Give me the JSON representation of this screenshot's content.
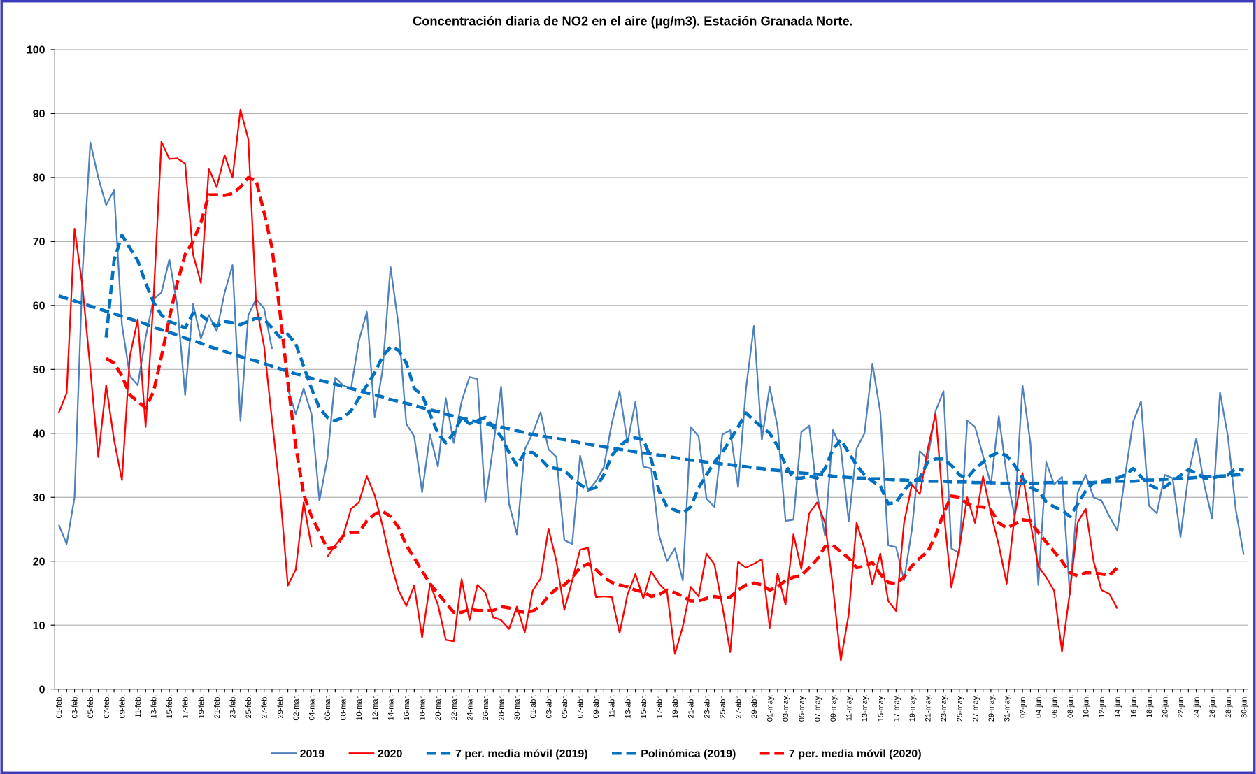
{
  "chart_data": {
    "type": "line",
    "title": "Concentración diaria de NO2 en el aire (µg/m3). Estación Granada Norte.",
    "categories": [
      "01-feb.",
      null,
      "03-feb.",
      null,
      "05-feb.",
      null,
      "07-feb.",
      null,
      "09-feb.",
      null,
      "11-feb.",
      null,
      "13-feb.",
      null,
      "15-feb.",
      null,
      "17-feb.",
      null,
      "19-feb.",
      null,
      "21-feb.",
      null,
      "23-feb.",
      null,
      "25-feb.",
      null,
      "27-feb.",
      null,
      "29-feb.",
      null,
      "02-mar.",
      null,
      "04-mar.",
      null,
      "06-mar.",
      null,
      "08-mar.",
      null,
      "10-mar.",
      null,
      "12-mar.",
      null,
      "14-mar.",
      null,
      "16-mar.",
      null,
      "18-mar.",
      null,
      "20-mar.",
      null,
      "22-mar.",
      null,
      "24-mar.",
      null,
      "26-mar.",
      null,
      "28-mar.",
      null,
      "30-mar.",
      null,
      "01-abr.",
      null,
      "03-abr.",
      null,
      "05-abr.",
      null,
      "07-abr.",
      null,
      "09-abr.",
      null,
      "11-abr.",
      null,
      "13-abr.",
      null,
      "15-abr.",
      null,
      "17-abr.",
      null,
      "19-abr.",
      null,
      "21-abr.",
      null,
      "23-abr.",
      null,
      "25-abr.",
      null,
      "27-abr.",
      null,
      "29-abr.",
      null,
      "01-may.",
      null,
      "03-may.",
      null,
      "05-may.",
      null,
      "07-may.",
      null,
      "09-may.",
      null,
      "11-may.",
      null,
      "13-may.",
      null,
      "15-may.",
      null,
      "17-may.",
      null,
      "19-may.",
      null,
      "21-may.",
      null,
      "23-may.",
      null,
      "25-may.",
      null,
      "27-may.",
      null,
      "29-may.",
      null,
      "31-may.",
      null,
      "02-jun.",
      null,
      "04-jun.",
      null,
      "06-jun.",
      null,
      "08-jun.",
      null,
      "10-jun.",
      null,
      "12-jun.",
      null,
      "14-jun.",
      null,
      "16-jun.",
      null,
      "18-jun.",
      null,
      "20-jun.",
      null,
      "22-jun.",
      null,
      "24-jun.",
      null,
      "26-jun.",
      null,
      "28-jun.",
      null,
      "30-jun."
    ],
    "series": [
      {
        "name": "2019",
        "color": "#4f81bd",
        "style": "solid",
        "values": [
          25.7,
          22.7,
          30,
          65,
          85.5,
          80,
          75.7,
          78,
          57,
          49,
          47.5,
          55,
          61,
          62,
          67.2,
          60,
          46,
          60.2,
          54.8,
          58.5,
          56,
          62,
          66.3,
          42,
          58.5,
          61,
          59.5,
          53.2,
          null,
          47,
          43,
          47,
          43,
          29.5,
          36,
          48.7,
          47.5,
          47,
          54.5,
          59,
          42.5,
          50,
          66,
          57,
          41.5,
          39.5,
          30.8,
          39.8,
          34.8,
          45.5,
          38.5,
          45,
          48.8,
          48.5,
          29.3,
          38,
          47.3,
          29,
          24.2,
          37.5,
          40,
          43.3,
          37.5,
          36.3,
          23.3,
          22.7,
          36.5,
          31,
          32.5,
          34.7,
          41.5,
          46.6,
          38.5,
          44.9,
          34.8,
          34.5,
          24,
          20,
          22,
          17,
          41,
          39.5,
          29.8,
          28.5,
          39.8,
          40.5,
          31.6,
          47,
          56.8,
          39,
          47.3,
          41,
          26.3,
          26.5,
          40.2,
          41.2,
          30.5,
          24,
          40.5,
          37.8,
          26.2,
          37.6,
          40,
          50.9,
          43.3,
          22.5,
          22.2,
          17,
          25,
          37.2,
          36,
          43.5,
          46.6,
          22,
          21.3,
          42,
          41,
          36.5,
          32,
          42.7,
          33.5,
          27,
          47.5,
          38.5,
          16.3,
          35.5,
          32,
          33.2,
          14.8,
          30.8,
          33.5,
          30,
          29.5,
          27,
          24.8,
          33.5,
          41.8,
          45,
          28.7,
          27.5,
          33.5,
          33,
          23.8,
          33.5,
          39.2,
          32,
          26.7,
          46.4,
          39.5,
          28,
          21
        ]
      },
      {
        "name": "2020",
        "color": "#ff0000",
        "style": "solid",
        "values": [
          43.2,
          46.3,
          72,
          63,
          50,
          36.3,
          47.5,
          39,
          32.7,
          52,
          57.8,
          41,
          61,
          85.6,
          82.9,
          83,
          82.2,
          68,
          63.5,
          81.4,
          78.5,
          83.5,
          80,
          90.6,
          86,
          60,
          53.6,
          42,
          31,
          16.2,
          18.7,
          29.2,
          22.2,
          null,
          20.7,
          22.5,
          24,
          28.2,
          29.2,
          33.3,
          30.3,
          25.5,
          20,
          15.5,
          13,
          16.2,
          8.1,
          16.5,
          13.2,
          7.7,
          7.5,
          17.2,
          10.8,
          16.3,
          15.1,
          11.2,
          10.8,
          9.4,
          12.9,
          8.9,
          15.4,
          17.3,
          25.1,
          20,
          12.4,
          17,
          21.8,
          22.1,
          14.4,
          14.5,
          14.4,
          8.8,
          14.8,
          18,
          14.2,
          18.4,
          16.5,
          15.2,
          5.5,
          9.8,
          16,
          14.5,
          21.2,
          19.5,
          13,
          5.8,
          19.9,
          19,
          19.6,
          20.3,
          9.6,
          18.1,
          13.2,
          24.2,
          18.8,
          27.5,
          29.2,
          26,
          16,
          4.5,
          11.7,
          26,
          22,
          16.4,
          21.2,
          13.8,
          12.2,
          26,
          32,
          30.5,
          37.5,
          43.1,
          28,
          15.9,
          22,
          30,
          26,
          33.3,
          27.5,
          22.5,
          16.5,
          27,
          33.8,
          26,
          19.2,
          17.5,
          15.4,
          5.9,
          15.2,
          26.1,
          28.2,
          20,
          15.5,
          14.9,
          12.6,
          null,
          null,
          null,
          null,
          null,
          null,
          null,
          null,
          null,
          null,
          null,
          null,
          null,
          null,
          null,
          null
        ]
      },
      {
        "name": "7 per. media móvil (2019)",
        "color": "#0070c0",
        "style": "dashed",
        "values": [
          null,
          null,
          null,
          null,
          null,
          null,
          55,
          67,
          71,
          69,
          67,
          63.5,
          60.5,
          58.5,
          57.5,
          57,
          56.5,
          58.8,
          58.5,
          57.5,
          56.8,
          57.5,
          57.3,
          57,
          57.5,
          58,
          57.8,
          56.5,
          55,
          55.5,
          54,
          50.5,
          47,
          44,
          42.5,
          42,
          42.5,
          43.5,
          45.5,
          47.5,
          49.5,
          52,
          53.5,
          53,
          51,
          47,
          46,
          43,
          40,
          38.5,
          40,
          42.5,
          41.5,
          42,
          42.5,
          41,
          39.5,
          37,
          35,
          37,
          37,
          36,
          34.7,
          34.5,
          34.2,
          33,
          32,
          31.2,
          31.5,
          33.5,
          36.5,
          38,
          39,
          39.3,
          39,
          36,
          31,
          28.5,
          28,
          27.5,
          28.5,
          31.5,
          33.5,
          35.5,
          37,
          39,
          41,
          43.2,
          42,
          41,
          40,
          38,
          35,
          33,
          33,
          33.3,
          33,
          34.5,
          37.5,
          39,
          37,
          35,
          33.5,
          32.5,
          31.8,
          29,
          29.2,
          31,
          32.5,
          33,
          35.5,
          36,
          36,
          35,
          33.5,
          33,
          34.5,
          35.5,
          36.5,
          37,
          36.5,
          35,
          33,
          31.5,
          31,
          29.3,
          28.5,
          28,
          27,
          29,
          31,
          32.3,
          32.5,
          32.8,
          33,
          33.5,
          34.5,
          33.2,
          32,
          31.4,
          31.6,
          32.5,
          33.4,
          34.3,
          33.8,
          33,
          33,
          33.3,
          33.5,
          34.5,
          34.2
        ]
      },
      {
        "name": "Polinómica (2019)",
        "color": "#0070c0",
        "style": "dashed",
        "values": [
          61.5,
          61.1,
          60.7,
          60.3,
          59.9,
          59.5,
          59.1,
          58.7,
          58.3,
          57.9,
          57.5,
          57.1,
          56.6,
          56.2,
          55.8,
          55.4,
          54.9,
          54.5,
          54.1,
          53.6,
          53.2,
          52.8,
          52.4,
          52,
          51.6,
          51.3,
          50.9,
          50.5,
          50.1,
          49.7,
          49.3,
          49,
          48.6,
          48.3,
          48,
          47.7,
          47.3,
          47,
          46.7,
          46.3,
          46,
          45.7,
          45.3,
          45,
          44.7,
          44.4,
          44,
          43.7,
          43.4,
          43,
          42.7,
          42.4,
          42.1,
          41.8,
          41.5,
          41.3,
          41,
          40.7,
          40.4,
          40.1,
          39.8,
          39.6,
          39.4,
          39.2,
          39,
          38.8,
          38.5,
          38.3,
          38.1,
          37.9,
          37.7,
          37.5,
          37.3,
          37.1,
          36.9,
          36.8,
          36.6,
          36.4,
          36.2,
          36,
          35.8,
          35.7,
          35.5,
          35.4,
          35.2,
          35.1,
          34.9,
          34.8,
          34.6,
          34.5,
          34.3,
          34.2,
          34.1,
          33.9,
          33.8,
          33.7,
          33.6,
          33.5,
          33.3,
          33.2,
          33.1,
          33,
          33,
          32.9,
          32.9,
          32.8,
          32.7,
          32.7,
          32.6,
          32.6,
          32.5,
          32.5,
          32.5,
          32.4,
          32.4,
          32.4,
          32.3,
          32.3,
          32.3,
          32.2,
          32.2,
          32.2,
          32.2,
          32.2,
          32.2,
          32.3,
          32.3,
          32.3,
          32.3,
          32.3,
          32.3,
          32.3,
          32.4,
          32.4,
          32.5,
          32.5,
          32.5,
          32.6,
          32.7,
          32.7,
          32.8,
          32.9,
          32.9,
          33,
          33.1,
          33.2,
          33.3,
          33.3,
          33.4,
          33.5,
          33.6
        ]
      },
      {
        "name": "7 per. media móvil (2020)",
        "color": "#ff0000",
        "style": "dashed",
        "values": [
          null,
          null,
          null,
          null,
          null,
          null,
          51.7,
          51,
          49,
          46,
          45,
          44,
          46.5,
          52,
          58,
          63.5,
          68,
          70,
          73,
          77.3,
          77.3,
          77.2,
          77.5,
          78.5,
          80,
          79.5,
          74.5,
          69,
          59,
          48,
          38,
          30.5,
          27,
          24.5,
          22,
          22.2,
          24,
          24.5,
          24.5,
          26.3,
          27.4,
          27.8,
          27,
          25.3,
          22.5,
          20.5,
          18.5,
          16.5,
          15,
          13.5,
          12,
          12,
          12.5,
          12.3,
          12.3,
          12.3,
          12.9,
          12.7,
          12.2,
          12,
          12.2,
          13,
          14.6,
          15.7,
          16.3,
          17.5,
          19,
          19.6,
          18.7,
          17.5,
          16.7,
          16.3,
          16,
          15.5,
          15.2,
          14.5,
          14.8,
          15.5,
          15.1,
          14.5,
          13.8,
          13.8,
          14.2,
          14.5,
          14.3,
          14.4,
          15.5,
          16.3,
          16.6,
          16.3,
          15.5,
          16,
          17,
          17.5,
          17.8,
          19,
          20.3,
          22.3,
          22.5,
          21.5,
          20.5,
          19,
          19.2,
          19.8,
          18,
          16.7,
          16.5,
          17.5,
          19.3,
          20.5,
          21.5,
          24,
          27.5,
          30.2,
          30,
          29,
          28.5,
          28.5,
          28,
          26,
          25.2,
          25.8,
          26.5,
          26.3,
          24.5,
          23,
          21.5,
          20,
          18.2,
          17.7,
          18.2,
          18.2,
          18,
          17.8,
          19,
          null,
          null,
          null,
          null,
          null,
          null,
          null,
          null,
          null,
          null,
          null,
          null,
          null,
          null,
          null,
          null
        ]
      }
    ],
    "ylim": [
      0,
      100
    ],
    "yticks": [
      0,
      10,
      20,
      30,
      40,
      50,
      60,
      70,
      80,
      90,
      100
    ],
    "grid": true,
    "legend": "bottom"
  }
}
